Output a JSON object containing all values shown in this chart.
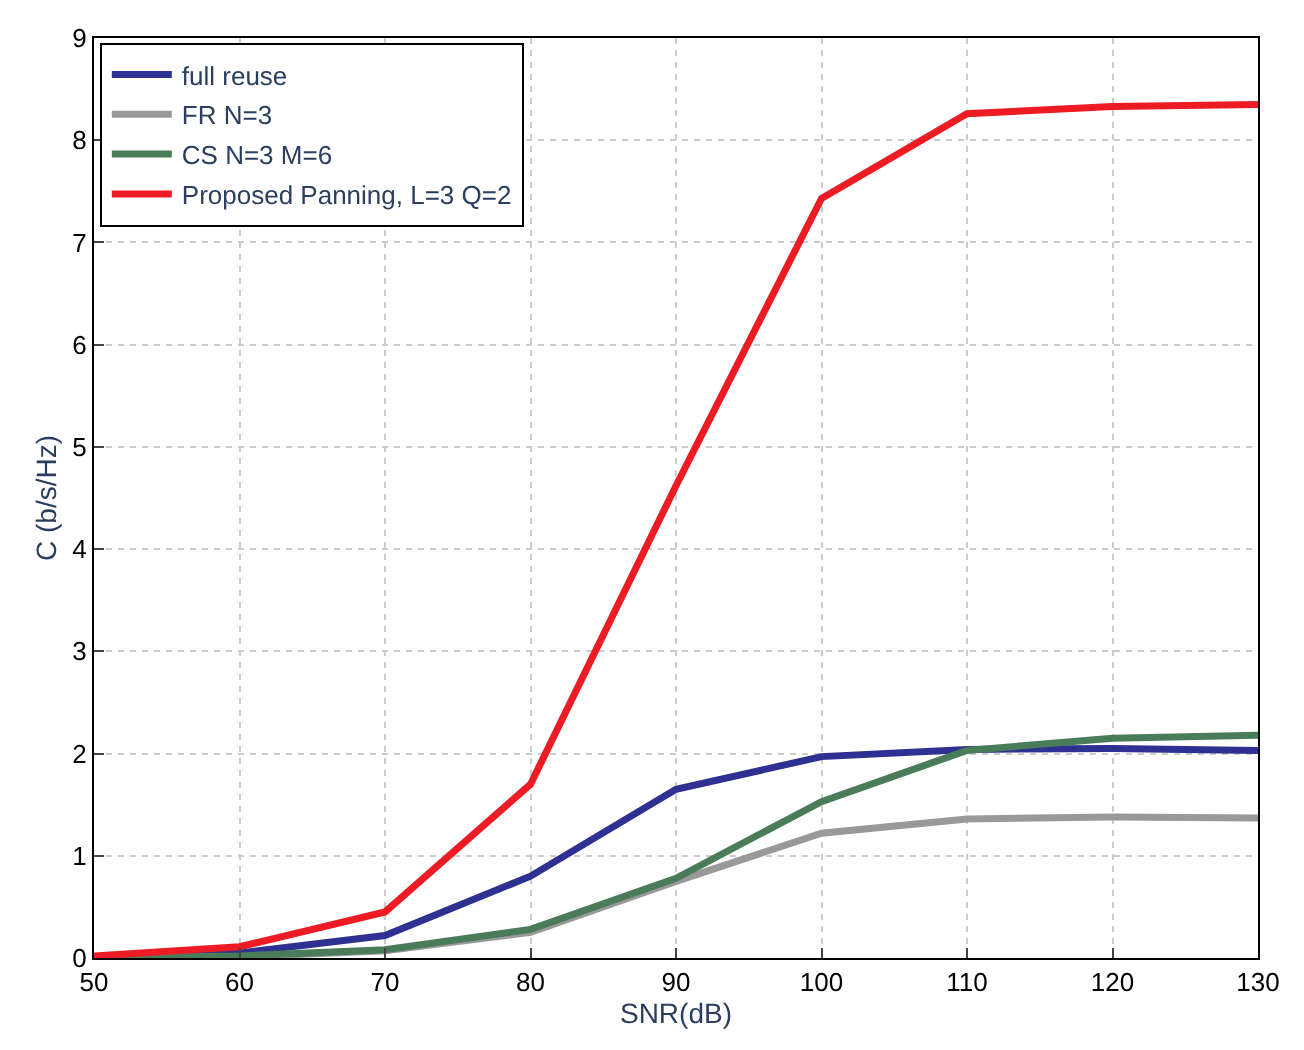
{
  "chart_data": {
    "type": "line",
    "xlabel": "SNR(dB)",
    "ylabel": "C (b/s/Hz)",
    "x": [
      50,
      60,
      70,
      80,
      90,
      100,
      110,
      120,
      130
    ],
    "series": [
      {
        "name": "full reuse",
        "color": "#2e3192",
        "values": [
          0,
          0.05,
          0.22,
          0.8,
          1.65,
          1.97,
          2.04,
          2.05,
          2.03
        ]
      },
      {
        "name": "FR N=3",
        "color": "#999999",
        "values": [
          0,
          0.01,
          0.07,
          0.25,
          0.75,
          1.22,
          1.36,
          1.38,
          1.37
        ]
      },
      {
        "name": "CS N=3 M=6",
        "color": "#4a7c59",
        "values": [
          0,
          0.02,
          0.08,
          0.28,
          0.78,
          1.53,
          2.03,
          2.15,
          2.18
        ]
      },
      {
        "name": "Proposed Panning, L=3 Q=2",
        "color": "#ed1c24",
        "values": [
          0.02,
          0.11,
          0.45,
          1.7,
          4.62,
          7.43,
          8.26,
          8.33,
          8.35
        ]
      }
    ],
    "xlim": [
      50,
      130
    ],
    "xticks": [
      50,
      60,
      70,
      80,
      90,
      100,
      110,
      120,
      130
    ],
    "ylim": [
      0,
      9
    ],
    "yticks": [
      0,
      1,
      2,
      3,
      4,
      5,
      6,
      7,
      8,
      9
    ],
    "grid": true,
    "legend": "top left",
    "marker": "none",
    "line_style": "solid"
  }
}
